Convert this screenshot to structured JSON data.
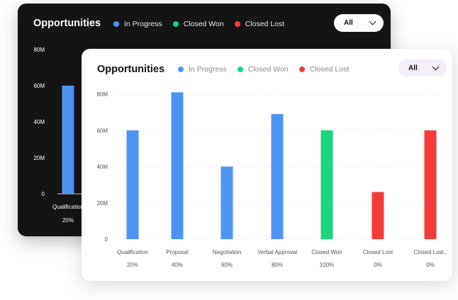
{
  "back_card": {
    "title": "Opportunities",
    "legend": [
      {
        "label": "In Progress",
        "color": "#4f94f5"
      },
      {
        "label": "Closed Won",
        "color": "#1dd57c"
      },
      {
        "label": "Closed Lost",
        "color": "#f43b3b"
      }
    ],
    "filter": {
      "value": "All"
    },
    "chart_data": {
      "type": "bar",
      "yticks": [
        "80M",
        "60M",
        "40M",
        "20M",
        "0"
      ],
      "ylim": [
        0,
        80
      ],
      "categories": [
        "Qualification"
      ],
      "percentages": [
        "20%"
      ],
      "values": [
        60
      ],
      "colors": [
        "#4f94f5"
      ]
    }
  },
  "front_card": {
    "title": "Opportunities",
    "legend": [
      {
        "label": "In Progress",
        "color": "#4f94f5"
      },
      {
        "label": "Closed Won",
        "color": "#1dd57c"
      },
      {
        "label": "Closed Lost",
        "color": "#f43b3b"
      }
    ],
    "filter": {
      "value": "All"
    },
    "chart_data": {
      "type": "bar",
      "yticks": [
        "80M",
        "60M",
        "40M",
        "20M",
        "0"
      ],
      "ylim": [
        0,
        80
      ],
      "categories": [
        "Qualification",
        "Proposal",
        "Negotiation",
        "Verbal Approval",
        "Closed Won",
        "Closed Lost",
        "Closed Lost.."
      ],
      "percentages": [
        "20%",
        "40%",
        "60%",
        "80%",
        "100%",
        "0%",
        "0%"
      ],
      "values": [
        60,
        81,
        40,
        69,
        60,
        26,
        60
      ],
      "colors": [
        "#4f94f5",
        "#4f94f5",
        "#4f94f5",
        "#4f94f5",
        "#1dd57c",
        "#f43b3b",
        "#f43b3b"
      ]
    }
  }
}
